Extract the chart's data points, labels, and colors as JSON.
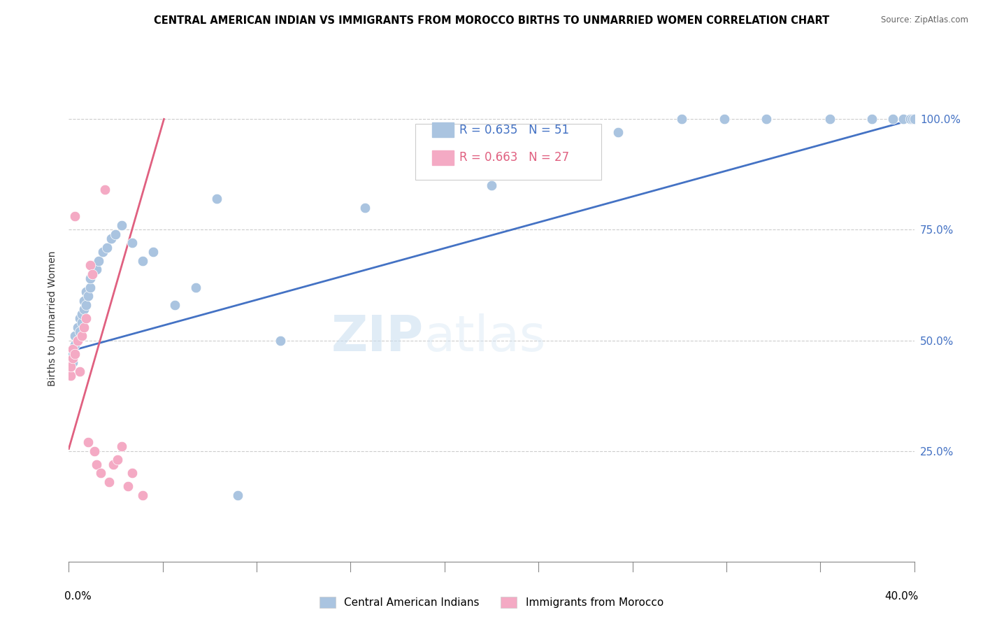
{
  "title": "CENTRAL AMERICAN INDIAN VS IMMIGRANTS FROM MOROCCO BIRTHS TO UNMARRIED WOMEN CORRELATION CHART",
  "source": "Source: ZipAtlas.com",
  "ylabel": "Births to Unmarried Women",
  "legend_blue": {
    "R": "0.635",
    "N": "51",
    "label": "Central American Indians"
  },
  "legend_pink": {
    "R": "0.663",
    "N": "27",
    "label": "Immigrants from Morocco"
  },
  "blue_color": "#aac4e0",
  "pink_color": "#f4aac4",
  "line_blue": "#4472c4",
  "line_pink": "#e06080",
  "watermark_zip": "ZIP",
  "watermark_atlas": "atlas",
  "xlim": [
    0.0,
    0.4
  ],
  "ylim": [
    0.0,
    1.1
  ],
  "yticks": [
    0.25,
    0.5,
    0.75,
    1.0
  ],
  "ytick_labels": [
    "25.0%",
    "50.0%",
    "75.0%",
    "100.0%"
  ],
  "blue_line_x": [
    0.0,
    0.4
  ],
  "blue_line_y": [
    0.475,
    1.0
  ],
  "pink_line_x": [
    0.0,
    0.045
  ],
  "pink_line_y": [
    0.255,
    1.0
  ],
  "blue_x": [
    0.0,
    0.001,
    0.001,
    0.002,
    0.002,
    0.003,
    0.003,
    0.004,
    0.004,
    0.005,
    0.005,
    0.006,
    0.006,
    0.007,
    0.007,
    0.008,
    0.008,
    0.009,
    0.01,
    0.01,
    0.011,
    0.012,
    0.013,
    0.014,
    0.016,
    0.018,
    0.02,
    0.022,
    0.025,
    0.03,
    0.035,
    0.04,
    0.05,
    0.06,
    0.07,
    0.08,
    0.1,
    0.14,
    0.2,
    0.26,
    0.29,
    0.31,
    0.33,
    0.36,
    0.38,
    0.39,
    0.395,
    0.398,
    0.399,
    0.4,
    0.4
  ],
  "blue_y": [
    0.46,
    0.47,
    0.44,
    0.45,
    0.48,
    0.49,
    0.51,
    0.5,
    0.53,
    0.52,
    0.55,
    0.54,
    0.56,
    0.57,
    0.59,
    0.58,
    0.61,
    0.6,
    0.62,
    0.64,
    0.65,
    0.67,
    0.66,
    0.68,
    0.7,
    0.71,
    0.73,
    0.74,
    0.76,
    0.72,
    0.68,
    0.7,
    0.58,
    0.62,
    0.82,
    0.15,
    0.5,
    0.8,
    0.85,
    0.97,
    1.0,
    1.0,
    1.0,
    1.0,
    1.0,
    1.0,
    1.0,
    1.0,
    1.0,
    1.0,
    1.0
  ],
  "pink_x": [
    0.0,
    0.0,
    0.001,
    0.001,
    0.002,
    0.002,
    0.003,
    0.003,
    0.004,
    0.005,
    0.006,
    0.007,
    0.008,
    0.009,
    0.01,
    0.011,
    0.012,
    0.013,
    0.015,
    0.017,
    0.019,
    0.021,
    0.023,
    0.025,
    0.028,
    0.03,
    0.035
  ],
  "pink_y": [
    0.43,
    0.45,
    0.42,
    0.44,
    0.46,
    0.48,
    0.47,
    0.78,
    0.5,
    0.43,
    0.51,
    0.53,
    0.55,
    0.27,
    0.67,
    0.65,
    0.25,
    0.22,
    0.2,
    0.84,
    0.18,
    0.22,
    0.23,
    0.26,
    0.17,
    0.2,
    0.15
  ]
}
